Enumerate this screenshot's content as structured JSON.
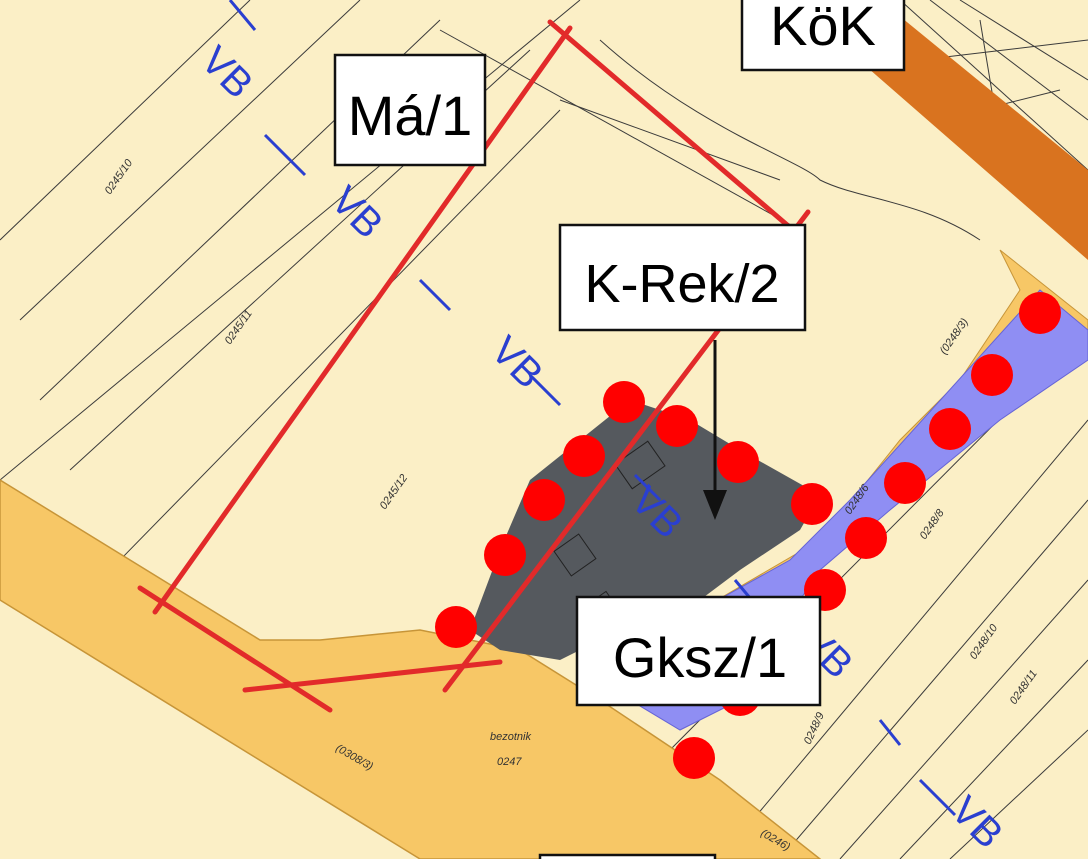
{
  "colors": {
    "background": "#fbefc6",
    "road": "#f7c766",
    "road_edge": "#c79538",
    "rail_band": "#d9731f",
    "building_zone": "#55595e",
    "gksz_zone": "#8f8ef3",
    "boundary_line": "#e22a2a",
    "marker": "#ff0000",
    "vb_line": "#2a3fd0",
    "parcel_line": "#3b3b3b"
  },
  "zone_labels": {
    "ma1": "Má/1",
    "krek2": "K-Rek/2",
    "gksz1": "Gksz/1",
    "kok": "KöK"
  },
  "vb_label": "VB",
  "parcel_numbers": {
    "p0245_10": "0245/10",
    "p0245_11": "0245/11",
    "p0245_12": "0245/12",
    "p0248_3": "(0248/3)",
    "p0248_6": "0248/6",
    "p0248_8": "0248/8",
    "p0248_9": "0248/9",
    "p0248_10": "0248/10",
    "p0248_11": "0248/11",
    "p0308_3": "(0308/3)",
    "p0247": "0247",
    "p0246": "(0246)",
    "bezotnik": "bezotnik"
  },
  "icons": [
    "vertical-arrow-icon",
    "tree-marker-icon"
  ]
}
